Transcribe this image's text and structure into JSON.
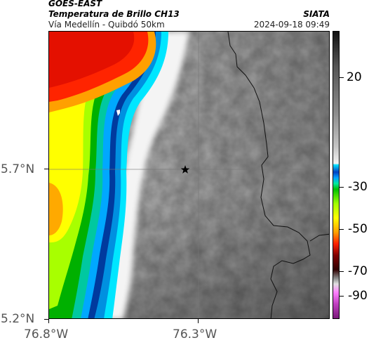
{
  "header": {
    "satellite": "GOES-EAST",
    "product": "Temperatura de Brillo CH13",
    "route": "Vía Medellín - Quibdó 50km",
    "brand": "SIATA",
    "timestamp": "2024-09-18 09:49"
  },
  "map": {
    "lat_labels": [
      "5.7°N",
      "5.2°N"
    ],
    "lon_labels": [
      "76.8°W",
      "76.3°W"
    ],
    "marker": "star-icon",
    "gridlines": true
  },
  "colorbar": {
    "labels": [
      "20",
      "-30",
      "-50",
      "-70",
      "-90"
    ],
    "colors": {
      "warm": "#f2f2f2",
      "cold_cyan": "#00e0ff",
      "cold_blue": "#0040c0",
      "green": "#00c000",
      "yellow": "#ffff00",
      "orange": "#ffa000",
      "red": "#ff2000",
      "dark_red": "#300000",
      "magenta": "#c040c0"
    }
  }
}
